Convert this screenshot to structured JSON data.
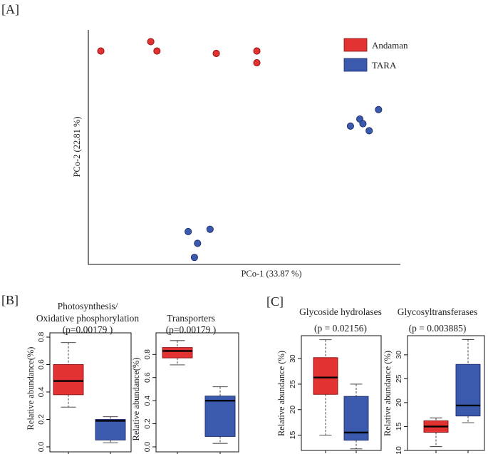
{
  "panels": {
    "a": "[A]",
    "b": "[B]",
    "c": "[C]"
  },
  "colors": {
    "andaman": "#e23232",
    "tara": "#3c5aad",
    "andaman_edge": "#8a1010",
    "tara_edge": "#1b2b6b"
  },
  "chart_data": [
    {
      "id": "pcoa",
      "type": "scatter",
      "title": "",
      "xlabel": "PCo-1 (33.87 %)",
      "ylabel": "PCo-2 (22.81 %)",
      "xlim": [
        0,
        100
      ],
      "ylim": [
        0,
        100
      ],
      "legend": {
        "position": "top-right",
        "entries": [
          "Andaman",
          "TARA"
        ]
      },
      "series": [
        {
          "name": "Andaman",
          "points": [
            [
              4,
              91
            ],
            [
              20,
              95
            ],
            [
              22,
              91
            ],
            [
              41,
              90
            ],
            [
              54,
              91
            ],
            [
              54,
              86
            ]
          ]
        },
        {
          "name": "TARA",
          "points": [
            [
              93,
              66
            ],
            [
              87,
              62
            ],
            [
              84,
              59
            ],
            [
              88,
              60
            ],
            [
              90,
              57
            ],
            [
              32,
              14
            ],
            [
              39,
              15
            ],
            [
              35,
              9
            ],
            [
              34,
              3
            ]
          ]
        }
      ]
    },
    {
      "id": "photosynthesis",
      "type": "box",
      "title": "Photosynthesis/ Oxidative phosphorylation",
      "title_lines": [
        "Photosynthesis/",
        "Oxidative phosphorylation"
      ],
      "pvalue": "(p=0.00179 )",
      "ylabel": "Relative abundance(%)",
      "yticks": [
        "0.0",
        "0.2",
        "0.4",
        "0.6",
        "0.8"
      ],
      "ylim": [
        0,
        0.8
      ],
      "boxes": [
        {
          "group": "Andaman",
          "whisker_low": 0.29,
          "q1": 0.38,
          "median": 0.48,
          "q3": 0.6,
          "whisker_high": 0.76
        },
        {
          "group": "TARA",
          "whisker_low": 0.03,
          "q1": 0.05,
          "median": 0.19,
          "q3": 0.2,
          "whisker_high": 0.22
        }
      ]
    },
    {
      "id": "transporters",
      "type": "box",
      "title": "Transporters",
      "title_lines": [
        "Transporters"
      ],
      "pvalue": "(p=0.00179 )",
      "ylabel": "Relative abundance(%)",
      "yticks": [
        "0.0",
        "0.2",
        "0.4",
        "0.6",
        "0.8"
      ],
      "ylim": [
        0,
        0.95
      ],
      "boxes": [
        {
          "group": "Andaman",
          "whisker_low": 0.71,
          "q1": 0.77,
          "median": 0.83,
          "q3": 0.86,
          "whisker_high": 0.92
        },
        {
          "group": "TARA",
          "whisker_low": 0.03,
          "q1": 0.09,
          "median": 0.4,
          "q3": 0.44,
          "whisker_high": 0.52
        }
      ]
    },
    {
      "id": "glycoside_hydrolases",
      "type": "box",
      "title": "Glycoside hydrolases",
      "title_lines": [
        "Glycoside hydrolases"
      ],
      "pvalue": "(p = 0.02156)",
      "ylabel": "Relative abundance (%)",
      "yticks": [
        "15",
        "20",
        "25",
        "30"
      ],
      "ylim": [
        12,
        34.5
      ],
      "boxes": [
        {
          "group": "Andaman",
          "whisker_low": 15.0,
          "q1": 23.0,
          "median": 26.3,
          "q3": 30.2,
          "whisker_high": 33.7
        },
        {
          "group": "TARA",
          "whisker_low": 12.3,
          "q1": 14.0,
          "median": 15.5,
          "q3": 22.6,
          "whisker_high": 25.0
        }
      ]
    },
    {
      "id": "glycosyltransferases",
      "type": "box",
      "title": "Glycosyltransferases",
      "title_lines": [
        "Glycosyltransferases"
      ],
      "pvalue": "(p = 0.003885)",
      "ylabel": "Relative abundance (%)",
      "yticks": [
        "10",
        "15",
        "20",
        "25",
        "30"
      ],
      "ylim": [
        10,
        34
      ],
      "boxes": [
        {
          "group": "Andaman",
          "whisker_low": 10.8,
          "q1": 13.8,
          "median": 15.0,
          "q3": 16.2,
          "whisker_high": 16.8
        },
        {
          "group": "TARA",
          "whisker_low": 15.8,
          "q1": 17.2,
          "median": 19.4,
          "q3": 28.0,
          "whisker_high": 33.2
        }
      ]
    }
  ]
}
